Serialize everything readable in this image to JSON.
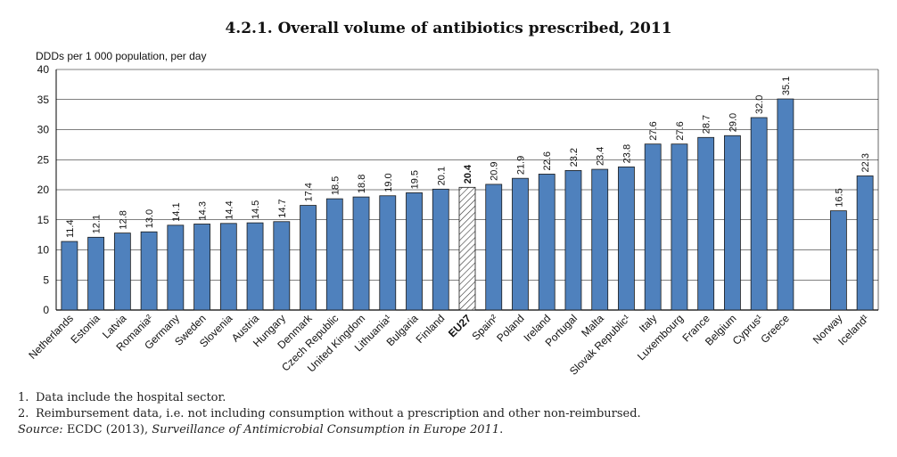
{
  "title": "4.2.1.  Overall volume of antibiotics prescribed, 2011",
  "colors": {
    "bar": "#4f81bd",
    "bar_border": "#1a1a1a",
    "grid": "#000000"
  },
  "chart_data": {
    "type": "bar",
    "title": "4.2.1.  Overall volume of antibiotics prescribed, 2011",
    "ylabel": "DDDs per 1 000 population, per day",
    "xlabel": "",
    "ylim": [
      0,
      40
    ],
    "yticks": [
      0,
      5,
      10,
      15,
      20,
      25,
      30,
      35,
      40
    ],
    "grid": true,
    "categories": [
      "Netherlands",
      "Estonia",
      "Latvia",
      "Romania²",
      "Germany",
      "Sweden",
      "Slovenia",
      "Austria",
      "Hungary",
      "Denmark",
      "Czech Republic",
      "United Kingdom",
      "Lithuania¹",
      "Bulgaria",
      "Finland",
      "EU27",
      "Spain²",
      "Poland",
      "Ireland",
      "Portugal",
      "Malta",
      "Slovak Republic¹",
      "Italy",
      "Luxembourg",
      "France",
      "Belgium",
      "Cyprus¹",
      "Greece",
      "",
      "Norway",
      "Iceland¹"
    ],
    "values": [
      11.4,
      12.1,
      12.8,
      13.0,
      14.1,
      14.3,
      14.4,
      14.5,
      14.7,
      17.4,
      18.5,
      18.8,
      19.0,
      19.5,
      20.1,
      20.4,
      20.9,
      21.9,
      22.6,
      23.2,
      23.4,
      23.8,
      27.6,
      27.6,
      28.7,
      29.0,
      32.0,
      35.1,
      null,
      16.5,
      22.3
    ],
    "value_labels": [
      "11.4",
      "12.1",
      "12.8",
      "13.0",
      "14.1",
      "14.3",
      "14.4",
      "14.5",
      "14.7",
      "17.4",
      "18.5",
      "18.8",
      "19.0",
      "19.5",
      "20.1",
      "20.4",
      "20.9",
      "21.9",
      "22.6",
      "23.2",
      "23.4",
      "23.8",
      "27.6",
      "27.6",
      "28.7",
      "29.0",
      "32.0",
      "35.1",
      "",
      "16.5",
      "22.3"
    ],
    "highlight": "EU27"
  },
  "footnotes": {
    "n1_num": "1.",
    "n1_text": "Data include the hospital sector.",
    "n2_num": "2.",
    "n2_text": "Reimbursement data, i.e. not including consumption without a prescription and other non-reimbursed.",
    "source_label": "Source:",
    "source_pre": " ECDC (2013), ",
    "source_italic": "Surveillance of Antimicrobial Consumption in Europe 2011",
    "source_post": "."
  }
}
